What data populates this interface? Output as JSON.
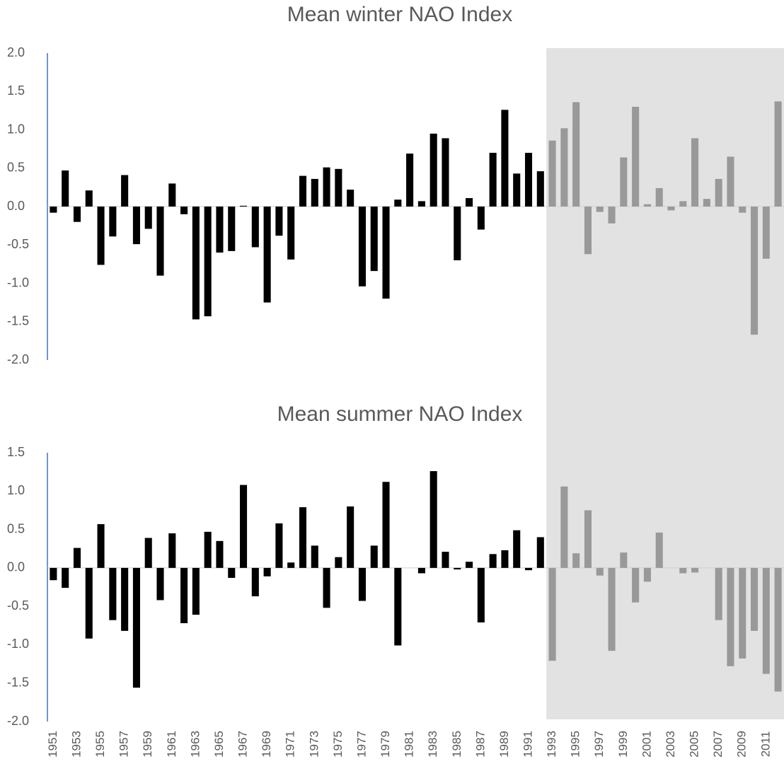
{
  "chart_data": [
    {
      "type": "bar",
      "title": "Mean winter NAO Index",
      "values": [
        -0.08,
        0.47,
        -0.2,
        0.21,
        -0.76,
        -0.39,
        0.41,
        -0.49,
        -0.29,
        -0.9,
        0.3,
        -0.1,
        -1.47,
        -1.43,
        -0.6,
        -0.58,
        0.01,
        -0.53,
        -1.25,
        -0.38,
        -0.69,
        0.4,
        0.36,
        0.51,
        0.49,
        0.22,
        -1.04,
        -0.84,
        -1.2,
        0.09,
        0.69,
        0.07,
        0.95,
        0.89,
        -0.7,
        0.11,
        -0.3,
        0.7,
        1.26,
        0.43,
        0.7,
        0.46,
        0.86,
        1.02,
        1.36,
        -0.62,
        -0.07,
        -0.22,
        0.64,
        1.3,
        0.03,
        0.24,
        -0.05,
        0.07,
        0.89,
        0.1,
        0.36,
        0.65,
        -0.08,
        -1.67,
        -0.68,
        1.37
      ],
      "color": "#000000",
      "highlight_from": 42,
      "highlight_color": "#999999",
      "shade_color": "#e2e2e2",
      "ylim": [
        -2,
        2
      ],
      "yticks": [
        {
          "value": -2,
          "label": "-2.0"
        },
        -1.5,
        {
          "value": -1,
          "label": "-1.0"
        },
        -0.5,
        {
          "value": 0,
          "label": "0.0"
        },
        0.5,
        {
          "value": 1,
          "label": "1.0"
        },
        1.5,
        {
          "value": 2,
          "label": "2.0"
        }
      ]
    },
    {
      "type": "bar",
      "title": "Mean summer NAO Index",
      "categories": [
        "1951",
        null,
        "1953",
        null,
        "1955",
        null,
        "1957",
        null,
        "1959",
        null,
        "1961",
        null,
        "1963",
        null,
        "1965",
        null,
        "1967",
        null,
        "1969",
        null,
        "1971",
        null,
        "1973",
        null,
        "1975",
        null,
        "1977",
        null,
        "1979",
        null,
        "1981",
        null,
        "1983",
        null,
        "1985",
        null,
        "1987",
        null,
        "1989",
        null,
        "1991",
        null,
        "1993",
        null,
        "1995",
        null,
        "1997",
        null,
        "1999",
        null,
        "2001",
        null,
        "2003",
        null,
        "2005",
        null,
        "2007",
        null,
        "2009",
        null,
        "2011",
        null
      ],
      "values": [
        -0.16,
        -0.26,
        0.26,
        -0.92,
        0.57,
        -0.68,
        -0.82,
        -1.56,
        0.39,
        -0.42,
        0.45,
        -0.72,
        -0.61,
        0.47,
        0.35,
        -0.13,
        1.08,
        -0.37,
        -0.11,
        0.58,
        0.07,
        0.79,
        0.29,
        -0.52,
        0.14,
        0.8,
        -0.43,
        0.29,
        1.12,
        -1.01,
        0,
        -0.07,
        1.26,
        0.21,
        -0.02,
        0.08,
        -0.71,
        0.18,
        0.23,
        0.49,
        -0.03,
        0.4,
        -1.21,
        1.06,
        0.19,
        0.75,
        -0.1,
        -1.08,
        0.2,
        -0.45,
        -0.18,
        0.46,
        0,
        -0.07,
        -0.06,
        0,
        -0.68,
        -1.28,
        -1.18,
        -0.82,
        -1.38,
        -1.61
      ],
      "color": "#000000",
      "highlight_from": 42,
      "highlight_color": "#999999",
      "ylim": [
        -2,
        1.5
      ],
      "yticks": [
        {
          "value": -2,
          "label": "-2.0"
        },
        -1.5,
        {
          "value": -1,
          "label": "-1.0"
        },
        -0.5,
        {
          "value": 0,
          "label": "0.0"
        },
        0.5,
        {
          "value": 1,
          "label": "1.0"
        },
        1.5
      ]
    }
  ]
}
